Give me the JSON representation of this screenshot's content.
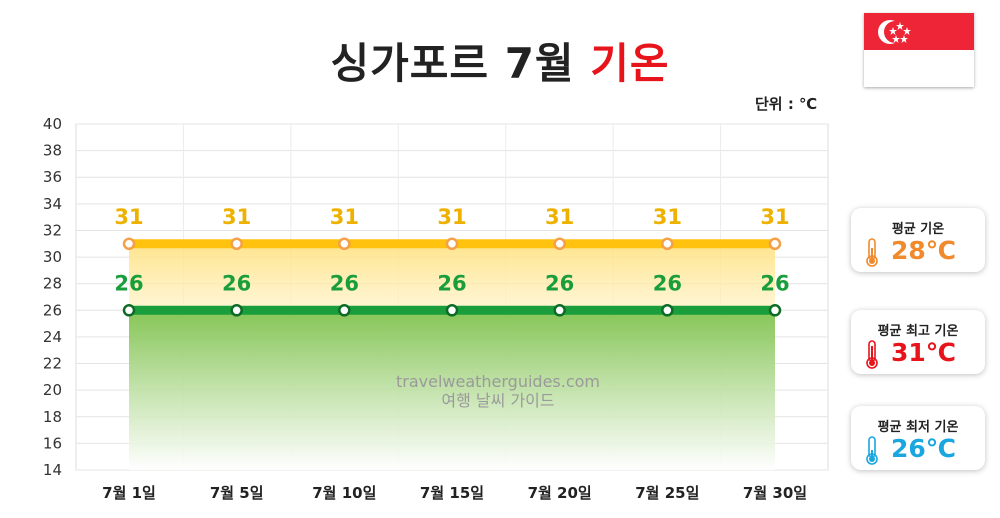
{
  "title": {
    "main": "싱가포르 7월",
    "accent": "기온"
  },
  "unit_label": "단위 : ℃",
  "watermark": {
    "line1": "travelweatherguides.com",
    "line2": "여행 날씨 가이드"
  },
  "cards": [
    {
      "label": "평균 기온",
      "value": "28℃",
      "color": "#f08a2c"
    },
    {
      "label": "평균 최고 기온",
      "value": "31℃",
      "color": "#e8141c"
    },
    {
      "label": "평균 최저 기온",
      "value": "26℃",
      "color": "#1aa7e0"
    }
  ],
  "colors": {
    "high": "#ffc20e",
    "low": "#1a9e3c",
    "title_accent": "#e8141c"
  },
  "chart_data": {
    "type": "line",
    "title": "싱가포르 7월 기온",
    "xlabel": "",
    "ylabel": "",
    "categories": [
      "7월 1일",
      "7월 5일",
      "7월 10일",
      "7월 15일",
      "7월 20일",
      "7월 25일",
      "7월 30일"
    ],
    "series": [
      {
        "values": [
          31,
          31,
          31,
          31,
          31,
          31,
          31
        ]
      },
      {
        "values": [
          26,
          26,
          26,
          26,
          26,
          26,
          26
        ]
      }
    ],
    "ylim": [
      14,
      40
    ],
    "yticks": [
      "40",
      "38",
      "36",
      "34",
      "32",
      "30",
      "28",
      "26",
      "24",
      "22",
      "20",
      "18",
      "16",
      "14"
    ],
    "grid": true,
    "area_fill": true
  }
}
